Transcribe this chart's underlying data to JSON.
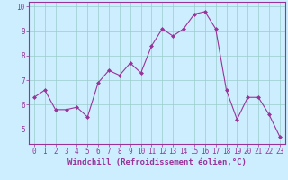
{
  "x": [
    0,
    1,
    2,
    3,
    4,
    5,
    6,
    7,
    8,
    9,
    10,
    11,
    12,
    13,
    14,
    15,
    16,
    17,
    18,
    19,
    20,
    21,
    22,
    23
  ],
  "y": [
    6.3,
    6.6,
    5.8,
    5.8,
    5.9,
    5.5,
    6.9,
    7.4,
    7.2,
    7.7,
    7.3,
    8.4,
    9.1,
    8.8,
    9.1,
    9.7,
    9.8,
    9.1,
    6.6,
    5.4,
    6.3,
    6.3,
    5.6,
    4.7
  ],
  "line_color": "#993399",
  "marker": "D",
  "marker_size": 2.0,
  "bg_color": "#cceeff",
  "grid_color": "#99cccc",
  "xlabel": "Windchill (Refroidissement éolien,°C)",
  "ylim": [
    4.4,
    10.2
  ],
  "xlim": [
    -0.5,
    23.5
  ],
  "yticks": [
    5,
    6,
    7,
    8,
    9,
    10
  ],
  "xticks": [
    0,
    1,
    2,
    3,
    4,
    5,
    6,
    7,
    8,
    9,
    10,
    11,
    12,
    13,
    14,
    15,
    16,
    17,
    18,
    19,
    20,
    21,
    22,
    23
  ],
  "tick_fontsize": 5.5,
  "xlabel_fontsize": 6.5,
  "spine_color": "#993399",
  "tick_color": "#993399",
  "label_color": "#993399",
  "linewidth": 0.8
}
